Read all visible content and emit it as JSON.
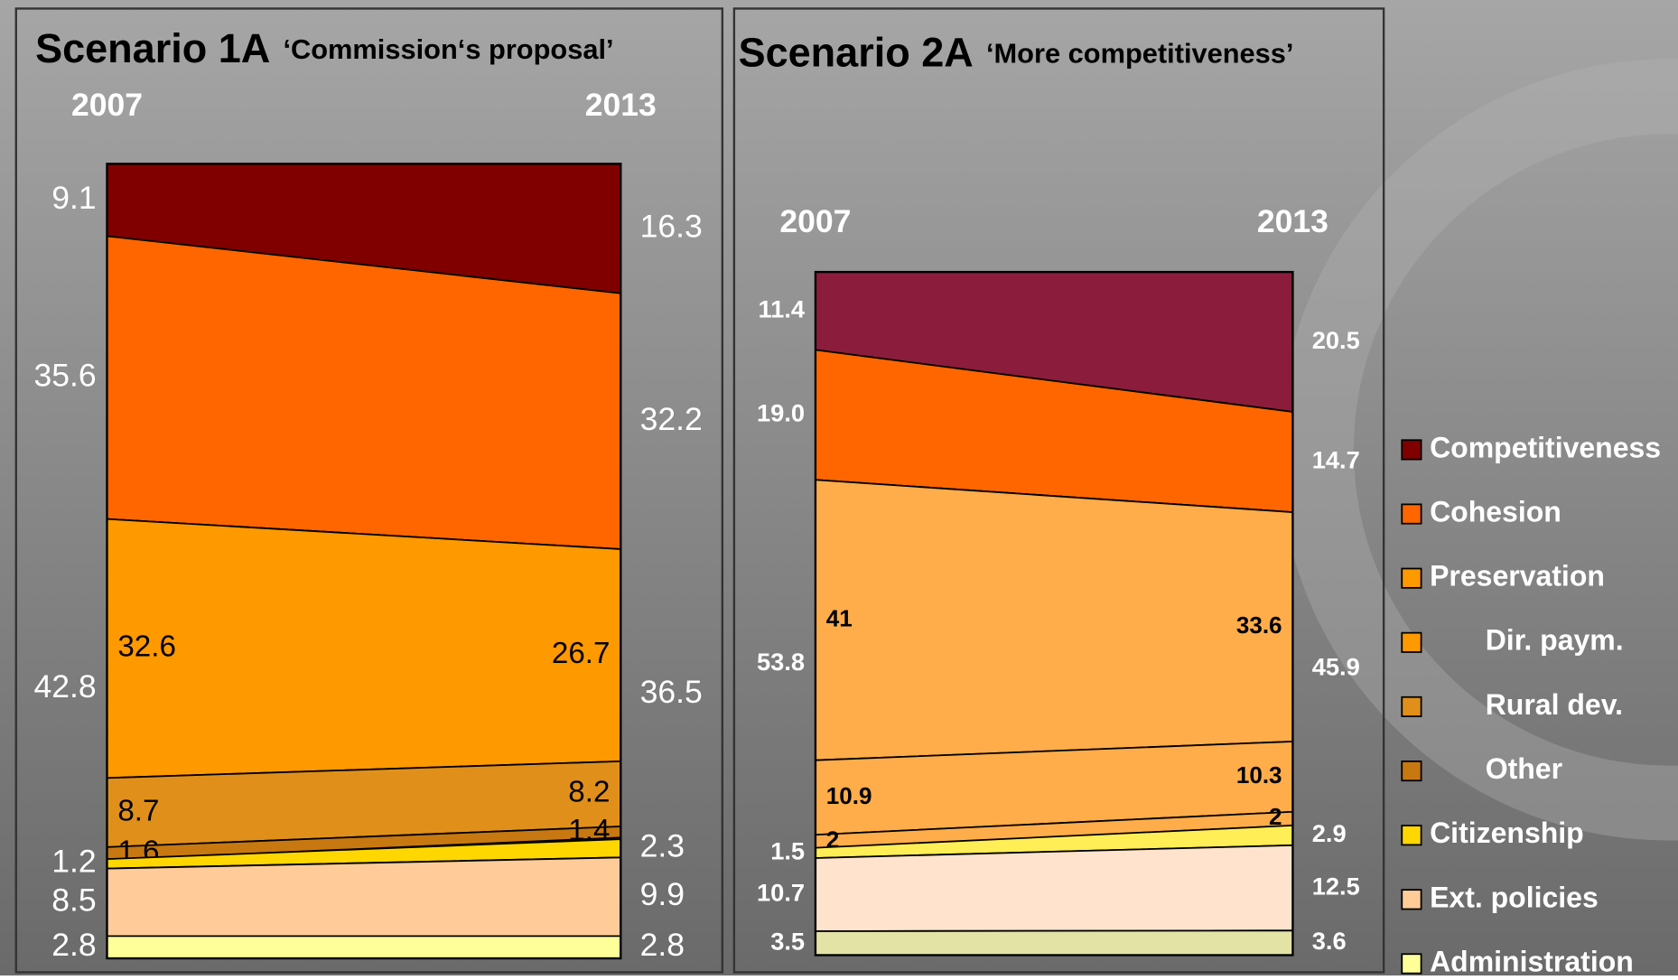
{
  "chart_data": [
    {
      "type": "stacked_area",
      "title": "Scenario 1A",
      "subtitle": "‘Commission‘s proposal’",
      "categories": [
        "2007",
        "2013"
      ],
      "series": [
        {
          "name": "Competitiveness",
          "color": "#800000",
          "values": [
            9.1,
            16.3
          ]
        },
        {
          "name": "Cohesion",
          "color": "#ff6600",
          "values": [
            35.6,
            32.2
          ]
        },
        {
          "name": "Preservation",
          "color": "#ff9900",
          "values": [
            42.8,
            36.5
          ]
        },
        {
          "name": "Dir. paym.",
          "color": "#ff9900",
          "values": [
            32.6,
            26.7
          ],
          "indent": true
        },
        {
          "name": "Rural dev.",
          "color": "#e0901a",
          "values": [
            8.7,
            8.2
          ],
          "indent": true
        },
        {
          "name": "Other",
          "color": "#c87810",
          "values": [
            1.6,
            1.4
          ],
          "indent": true
        },
        {
          "name": "Citizenship",
          "color": "#ffd700",
          "values": [
            1.2,
            2.3
          ]
        },
        {
          "name": "Ext. policies",
          "color": "#ffcc99",
          "values": [
            8.5,
            9.9
          ]
        },
        {
          "name": "Administration",
          "color": "#ffff99",
          "values": [
            2.8,
            2.8
          ]
        }
      ]
    },
    {
      "type": "stacked_area",
      "title": "Scenario 2A",
      "subtitle": "‘More competitiveness’",
      "categories": [
        "2007",
        "2013"
      ],
      "series": [
        {
          "name": "Competitiveness",
          "color": "#8c1c3c",
          "values": [
            11.4,
            20.5
          ]
        },
        {
          "name": "Cohesion",
          "color": "#ff6600",
          "values": [
            19,
            14.7
          ],
          "value_labels": [
            "19.0",
            "14.7"
          ]
        },
        {
          "name": "Preservation",
          "color": "#ffad4a",
          "values": [
            53.8,
            45.9
          ]
        },
        {
          "name": "Dir. paym.",
          "color": "#ffad4a",
          "values": [
            41,
            33.6
          ],
          "indent": true
        },
        {
          "name": "Rural dev.",
          "color": "#ffad4a",
          "values": [
            10.9,
            10.3
          ],
          "indent": true
        },
        {
          "name": "Other",
          "color": "#ffad4a",
          "values": [
            2,
            2
          ],
          "indent": true
        },
        {
          "name": "Citizenship",
          "color": "#ffee55",
          "values": [
            1.5,
            2.9
          ]
        },
        {
          "name": "Ext. policies",
          "color": "#ffe3cc",
          "values": [
            10.7,
            12.5
          ]
        },
        {
          "name": "Administration",
          "color": "#e3e3a6",
          "values": [
            3.5,
            3.6
          ]
        }
      ]
    }
  ]
}
